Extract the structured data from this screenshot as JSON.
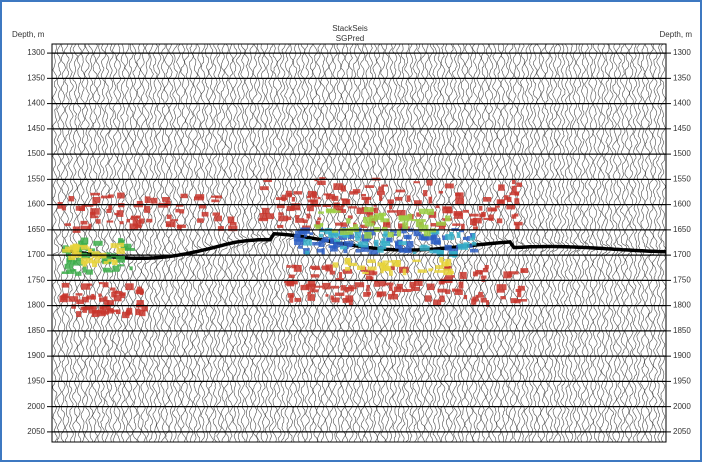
{
  "chart_data": {
    "type": "seismic",
    "title": "StackSeis",
    "subtitle": "SGPred",
    "y_label_left": "Depth, m",
    "y_label_right": "Depth, m",
    "ylim": [
      1282,
      2070
    ],
    "y_inverted": true,
    "yticks": [
      1300,
      1350,
      1400,
      1450,
      1500,
      1550,
      1600,
      1650,
      1700,
      1750,
      1800,
      1850,
      1900,
      1950,
      2000,
      2050
    ],
    "grid": true
  }
}
